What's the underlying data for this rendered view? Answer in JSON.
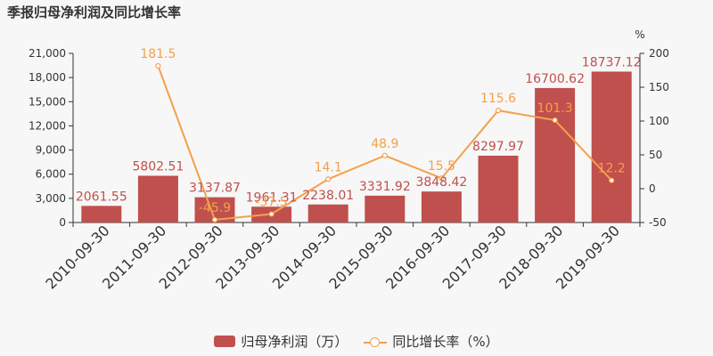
{
  "title": "季报归母净利润及同比增长率",
  "legend": {
    "bar_label": "归母净利润（万）",
    "line_label": "同比增长率（%）"
  },
  "chart_data": {
    "type": "bar+line",
    "title": "季报归母净利润及同比增长率",
    "categories": [
      "2010-09-30",
      "2011-09-30",
      "2012-09-30",
      "2013-09-30",
      "2014-09-30",
      "2015-09-30",
      "2016-09-30",
      "2017-09-30",
      "2018-09-30",
      "2019-09-30"
    ],
    "series": [
      {
        "name": "归母净利润（万）",
        "type": "bar",
        "axis": "left",
        "color": "#c0504d",
        "values": [
          2061.55,
          5802.51,
          3137.87,
          1961.31,
          2238.01,
          3331.92,
          3848.42,
          8297.97,
          16700.62,
          18737.12
        ],
        "labels": [
          "2061.55",
          "5802.51",
          "3137.87",
          "1961.31",
          "2238.01",
          "3331.92",
          "3848.42",
          "8297.97",
          "16700.62",
          "18737.12"
        ]
      },
      {
        "name": "同比增长率（%）",
        "type": "line",
        "axis": "right",
        "color": "#f4a04a",
        "values": [
          null,
          181.5,
          -45.9,
          -37.5,
          14.1,
          48.9,
          15.5,
          115.6,
          101.3,
          12.2
        ],
        "labels": [
          "",
          "181.5",
          "-45.9",
          "-37.5",
          "14.1",
          "48.9",
          "15.5",
          "115.6",
          "101.3",
          "12.2"
        ]
      }
    ],
    "y_left": {
      "ylim": [
        0,
        21000
      ],
      "ticks": [
        0,
        3000,
        6000,
        9000,
        12000,
        15000,
        18000,
        21000
      ],
      "tick_labels": [
        "0",
        "3,000",
        "6,000",
        "9,000",
        "12,000",
        "15,000",
        "18,000",
        "21,000"
      ]
    },
    "y_right": {
      "unit": "%",
      "ylim": [
        -50,
        200
      ],
      "ticks": [
        -50,
        0,
        50,
        100,
        150,
        200
      ],
      "tick_labels": [
        "-50",
        "0",
        "50",
        "100",
        "150",
        "200"
      ]
    },
    "grid": false,
    "legend_position": "bottom"
  }
}
